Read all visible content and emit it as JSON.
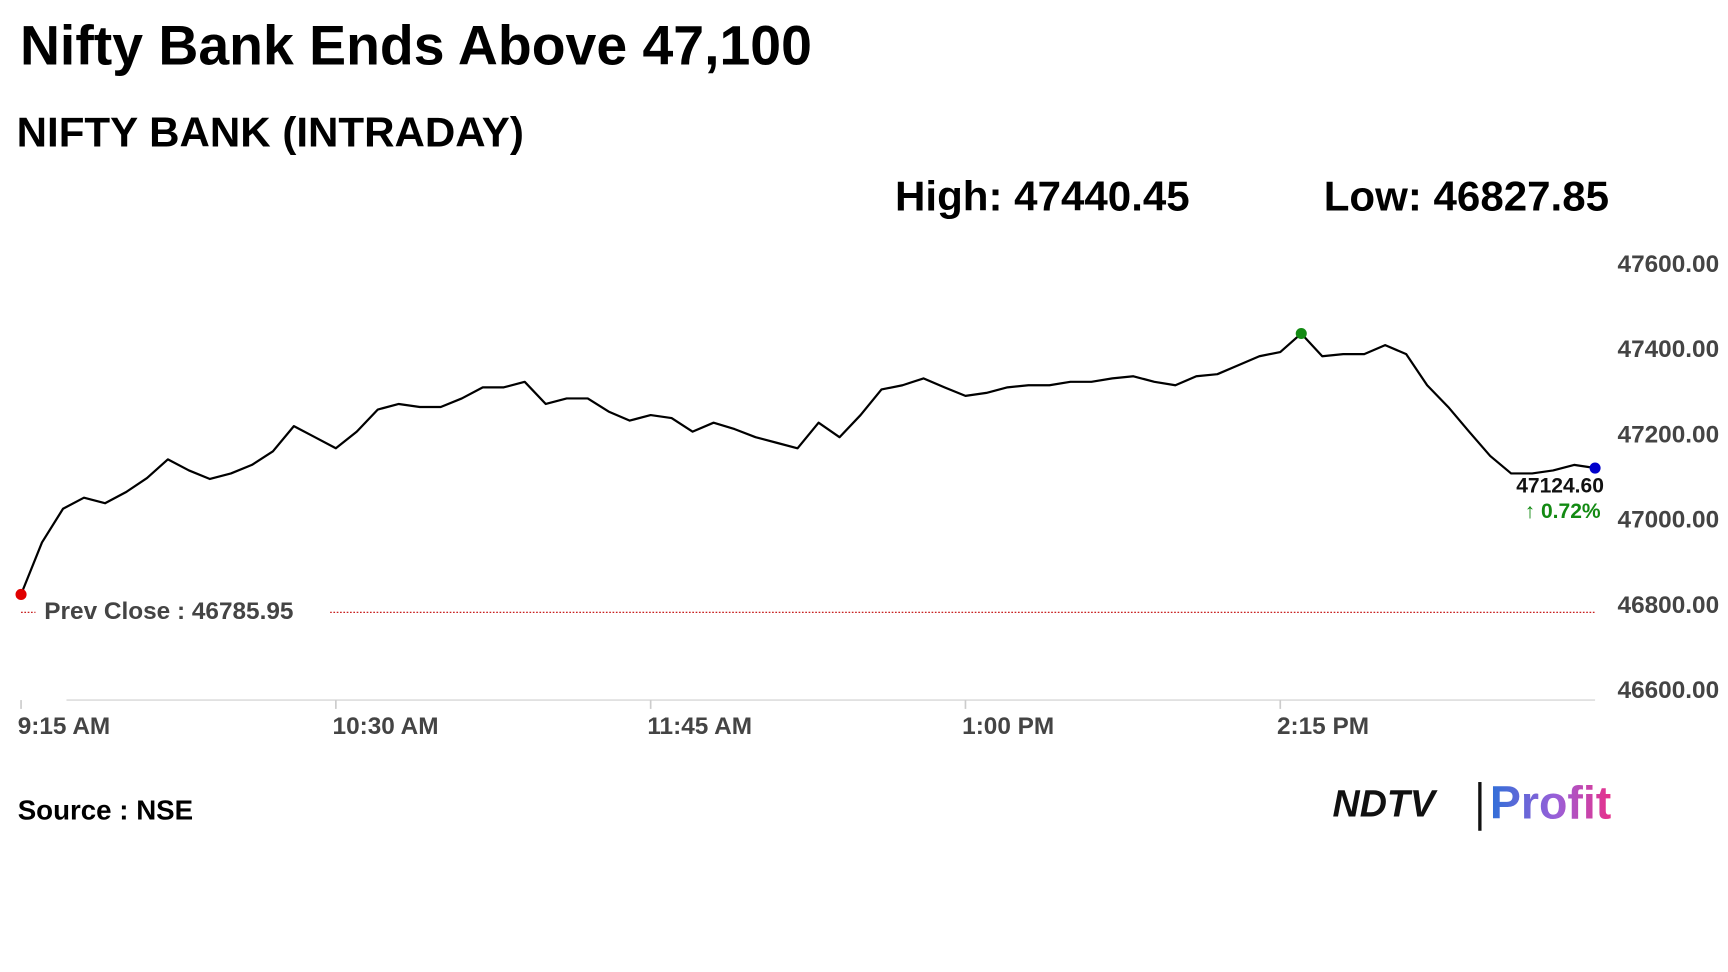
{
  "chart_data": {
    "type": "line",
    "title": "Nifty Bank Ends Above 47,100",
    "subtitle": "NIFTY BANK (INTRADAY)",
    "high_label": "High: 47440.45",
    "low_label": "Low: 46827.85",
    "last_label": "47124.60",
    "change_label": "↑ 0.72%",
    "prev_close": 46785.95,
    "prev_close_label": "Prev Close : 46785.95",
    "source": "Source : NSE",
    "logo": {
      "brand": "NDTV",
      "product": "Profit"
    },
    "x": [
      "9:15 AM",
      "9:20 AM",
      "9:25 AM",
      "9:30 AM",
      "9:35 AM",
      "9:40 AM",
      "9:45 AM",
      "9:50 AM",
      "9:55 AM",
      "10:00 AM",
      "10:05 AM",
      "10:10 AM",
      "10:15 AM",
      "10:20 AM",
      "10:25 AM",
      "10:30 AM",
      "10:35 AM",
      "10:40 AM",
      "10:45 AM",
      "10:50 AM",
      "10:55 AM",
      "11:00 AM",
      "11:05 AM",
      "11:10 AM",
      "11:15 AM",
      "11:20 AM",
      "11:25 AM",
      "11:30 AM",
      "11:35 AM",
      "11:40 AM",
      "11:45 AM",
      "11:50 AM",
      "11:55 AM",
      "12:00 PM",
      "12:05 PM",
      "12:10 PM",
      "12:15 PM",
      "12:20 PM",
      "12:25 PM",
      "12:30 PM",
      "12:35 PM",
      "12:40 PM",
      "12:45 PM",
      "12:50 PM",
      "12:55 PM",
      "1:00 PM",
      "1:05 PM",
      "1:10 PM",
      "1:15 PM",
      "1:20 PM",
      "1:25 PM",
      "1:30 PM",
      "1:35 PM",
      "1:40 PM",
      "1:45 PM",
      "1:50 PM",
      "1:55 PM",
      "2:00 PM",
      "2:05 PM",
      "2:10 PM",
      "2:15 PM",
      "2:20 PM",
      "2:25 PM",
      "2:30 PM",
      "2:35 PM",
      "2:40 PM",
      "2:45 PM",
      "2:50 PM",
      "2:55 PM",
      "3:00 PM",
      "3:05 PM",
      "3:10 PM",
      "3:15 PM",
      "3:20 PM",
      "3:25 PM",
      "3:30 PM"
    ],
    "series": [
      {
        "color": "#000000",
        "values": [
          46827.85,
          46950,
          47029,
          47055,
          47042,
          47068,
          47101,
          47145,
          47119,
          47099,
          47112,
          47132,
          47164,
          47223,
          47197,
          47171,
          47210,
          47262,
          47275,
          47268,
          47268,
          47288,
          47314,
          47314,
          47327,
          47275,
          47288,
          47288,
          47257,
          47236,
          47249,
          47242,
          47210,
          47231,
          47216,
          47197,
          47184,
          47171,
          47231,
          47197,
          47249,
          47309,
          47319,
          47335,
          47314,
          47294,
          47301,
          47314,
          47319,
          47319,
          47327,
          47327,
          47335,
          47340,
          47327,
          47319,
          47340,
          47345,
          47366,
          47387,
          47397,
          47440.45,
          47387,
          47392,
          47392,
          47413,
          47392,
          47319,
          47268,
          47210,
          47153,
          47112,
          47112,
          47119,
          47132,
          47124.6
        ]
      }
    ],
    "marker_colors": {
      "first": "#e00000",
      "high": "#138a13",
      "last": "#0000cc"
    },
    "prev_close_color": "#c00000",
    "change_color": "#138a13",
    "xlim": [
      "9:15 AM",
      "3:30 PM"
    ],
    "xticks": [
      "9:15 AM",
      "10:30 AM",
      "11:45 AM",
      "1:00 PM",
      "2:15 PM"
    ],
    "ylim": [
      46580,
      47620
    ],
    "yticks": [
      {
        "value": 46600,
        "label": "46600.00"
      },
      {
        "value": 46800,
        "label": "46800.00"
      },
      {
        "value": 47000,
        "label": "47000.00"
      },
      {
        "value": 47200,
        "label": "47200.00"
      },
      {
        "value": 47400,
        "label": "47400.00"
      },
      {
        "value": 47600,
        "label": "47600.00"
      }
    ]
  }
}
